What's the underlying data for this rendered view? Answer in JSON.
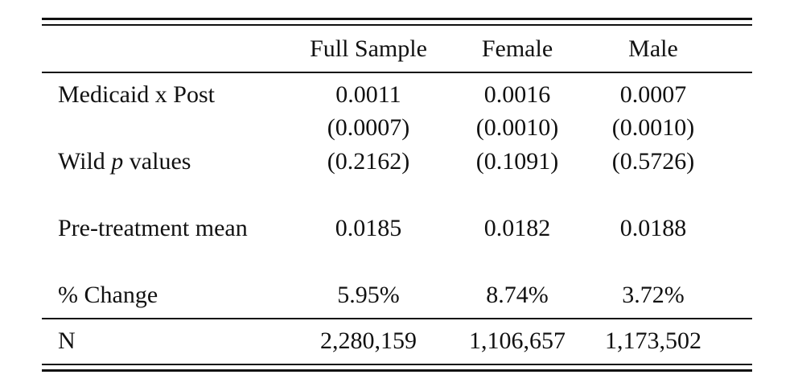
{
  "table": {
    "columns": [
      "Full Sample",
      "Female",
      "Male"
    ],
    "rows": [
      {
        "label": "Medicaid x Post",
        "values": [
          "0.0011",
          "0.0016",
          "0.0007"
        ]
      },
      {
        "label": "",
        "values": [
          "(0.0007)",
          "(0.0010)",
          "(0.0010)"
        ]
      },
      {
        "label_prefix": "Wild ",
        "label_italic": "p",
        "label_suffix": " values",
        "values": [
          "(0.2162)",
          "(0.1091)",
          "(0.5726)"
        ]
      },
      {
        "label": "Pre-treatment mean",
        "values": [
          "0.0185",
          "0.0182",
          "0.0188"
        ]
      },
      {
        "label": "% Change",
        "values": [
          "5.95%",
          "8.74%",
          "3.72%"
        ]
      },
      {
        "label": "N",
        "values": [
          "2,280,159",
          "1,106,657",
          "1,173,502"
        ]
      }
    ]
  }
}
